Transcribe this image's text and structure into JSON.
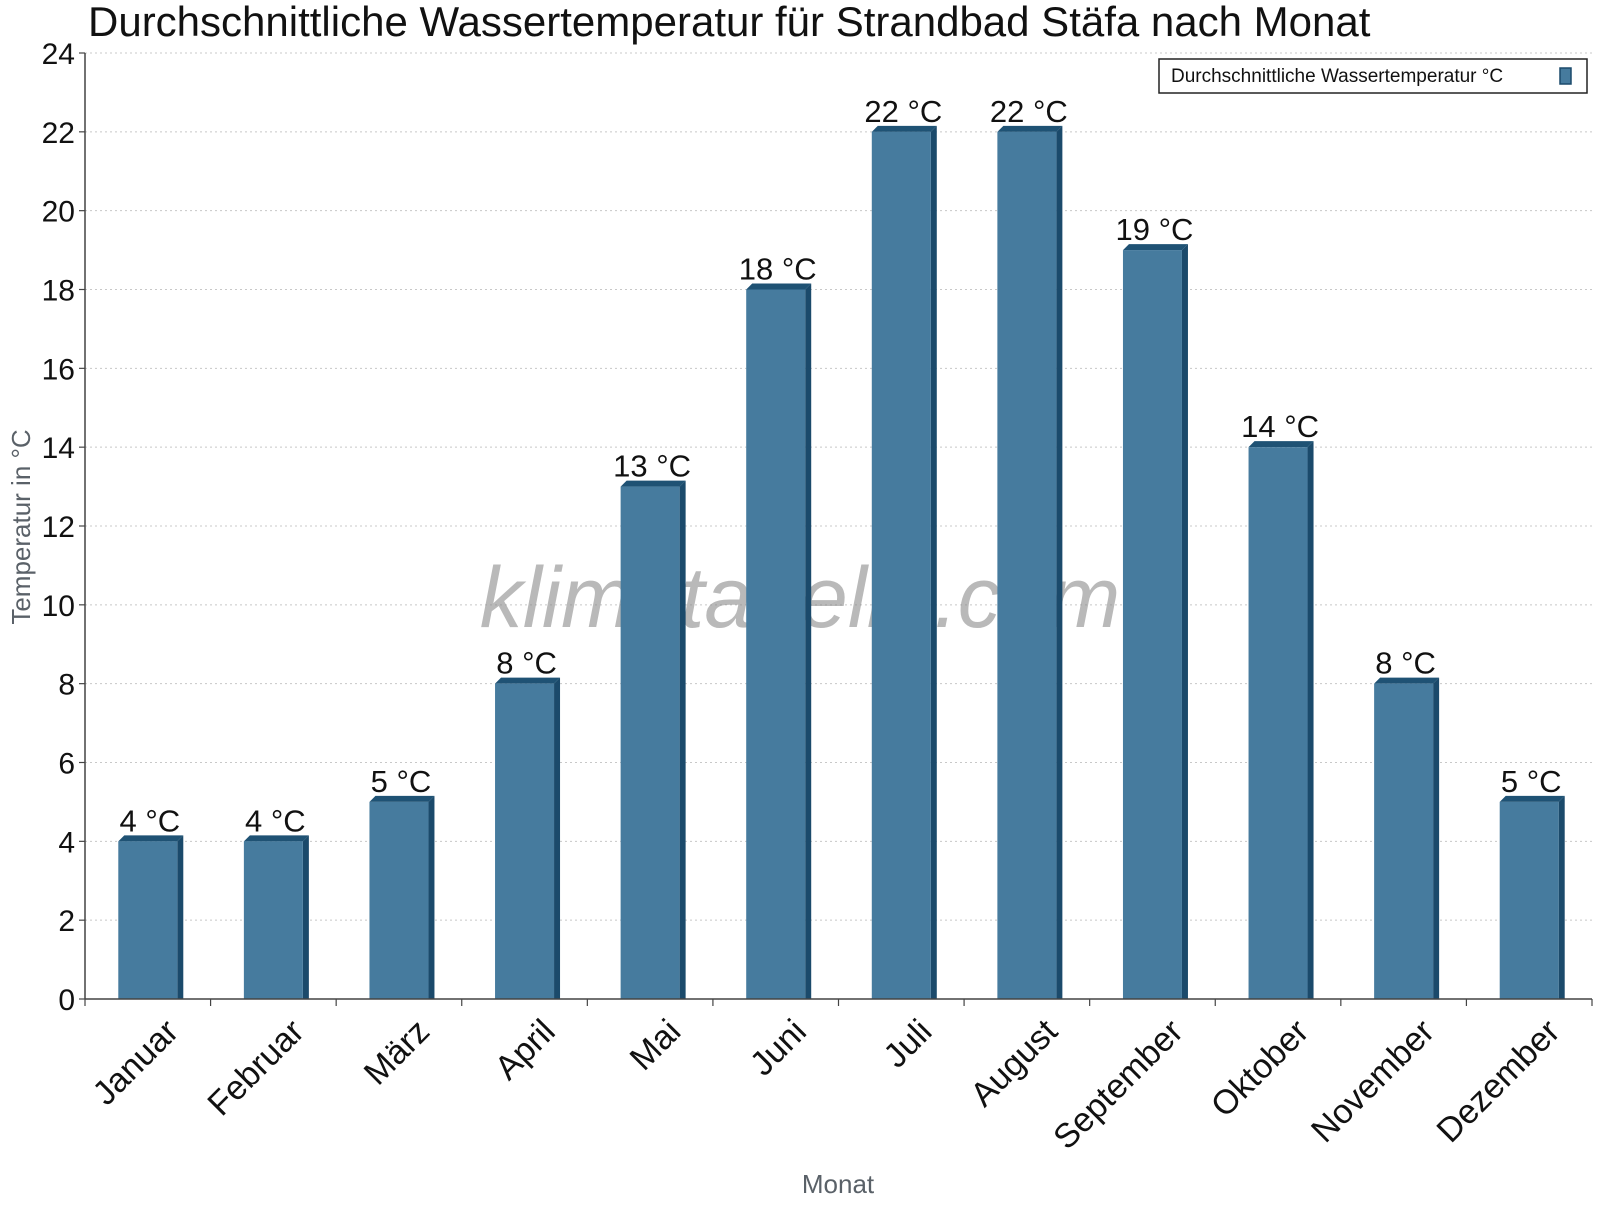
{
  "chart_data": {
    "type": "bar",
    "title": "Durchschnittliche Wassertemperatur für Strandbad Stäfa nach Monat",
    "xlabel": "Monat",
    "ylabel": "Temperatur in °C",
    "categories": [
      "Januar",
      "Februar",
      "März",
      "April",
      "Mai",
      "Juni",
      "Juli",
      "August",
      "September",
      "Oktober",
      "November",
      "Dezember"
    ],
    "series": [
      {
        "name": "Durchschnittliche Wassertemperatur °C",
        "values": [
          4,
          4,
          5,
          8,
          13,
          18,
          22,
          22,
          19,
          14,
          8,
          5
        ],
        "data_labels": [
          "4 °C",
          "4 °C",
          "5 °C",
          "8 °C",
          "13 °C",
          "18 °C",
          "22 °C",
          "22 °C",
          "19 °C",
          "14 °C",
          "8 °C",
          "5 °C"
        ]
      }
    ],
    "ylim": [
      0,
      24
    ],
    "yticks": [
      0,
      2,
      4,
      6,
      8,
      10,
      12,
      14,
      16,
      18,
      20,
      22,
      24
    ],
    "grid": true,
    "legend_position": "top-right",
    "watermark": "klimatabelle.com",
    "colors": {
      "bar_front": "#467b9e",
      "bar_side": "#1b4a6b",
      "bar_top": "#1f5274",
      "grid": "#c8c8c8",
      "axis": "#444444"
    }
  }
}
